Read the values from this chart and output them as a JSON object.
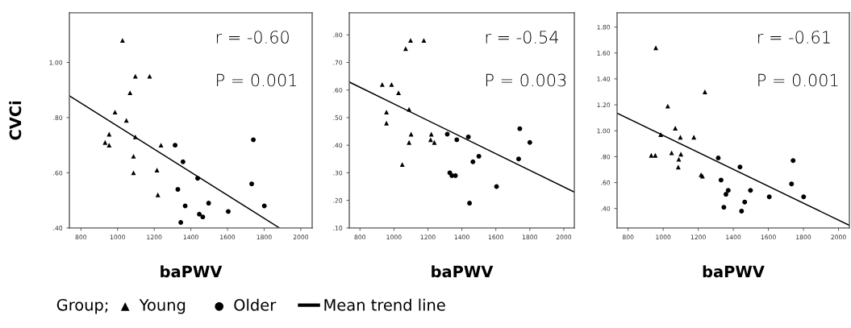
{
  "chart_data": [
    {
      "type": "scatter",
      "ylabel": "CVCi",
      "xlabel": "baPWV",
      "annotations": [
        "r = -0.60",
        "P = 0.001"
      ],
      "legend": "bottom",
      "legend_title": "Group;",
      "grid": false,
      "xlim": [
        737,
        2062
      ],
      "xticks": [
        800,
        1000,
        1200,
        1400,
        1600,
        1800,
        2000
      ],
      "ylim": [
        0.4,
        1.18
      ],
      "yticks": [
        {
          "value": 0.4,
          "label": ".40"
        },
        {
          "value": 0.6,
          "label": ".60"
        },
        {
          "value": 0.8,
          "label": ".80"
        },
        {
          "value": 1.0,
          "label": "1.00"
        }
      ],
      "series": [
        {
          "name": "Young",
          "color": "#000000",
          "marker": "triangle",
          "x": [
            1027,
            1097,
            1175,
            1068,
            986,
            1048,
            954,
            932,
            954,
            1097,
            1087,
            1237,
            1087,
            1215,
            1220
          ],
          "values": [
            1.08,
            0.95,
            0.95,
            0.89,
            0.82,
            0.79,
            0.74,
            0.71,
            0.7,
            0.73,
            0.66,
            0.7,
            0.6,
            0.61,
            0.52
          ]
        },
        {
          "name": "Older",
          "color": "#000000",
          "marker": "circle",
          "x": [
            1314,
            1357,
            1437,
            1329,
            1369,
            1446,
            1465,
            1345,
            1497,
            1604,
            1732,
            1741,
            1801
          ],
          "values": [
            0.7,
            0.64,
            0.58,
            0.54,
            0.48,
            0.45,
            0.44,
            0.42,
            0.49,
            0.46,
            0.56,
            0.72,
            0.48
          ]
        },
        {
          "name": "Mean trend line",
          "type": "line",
          "color": "#000000",
          "marker": "none",
          "x": [
            737,
            1884
          ],
          "values": [
            0.879,
            0.4
          ]
        }
      ]
    },
    {
      "type": "scatter",
      "xlabel": "baPWV",
      "annotations": [
        "r = -0.54",
        "P = 0.003"
      ],
      "grid": false,
      "xlim": [
        737,
        2062
      ],
      "xticks": [
        800,
        1000,
        1200,
        1400,
        1600,
        1800,
        2000
      ],
      "ylim": [
        0.1,
        0.88
      ],
      "yticks": [
        {
          "value": 0.1,
          "label": ".10"
        },
        {
          "value": 0.2,
          "label": ".20"
        },
        {
          "value": 0.3,
          "label": ".30"
        },
        {
          "value": 0.4,
          "label": ".40"
        },
        {
          "value": 0.5,
          "label": ".50"
        },
        {
          "value": 0.6,
          "label": ".60"
        },
        {
          "value": 0.7,
          "label": ".70"
        },
        {
          "value": 0.8,
          "label": ".80"
        }
      ],
      "series": [
        {
          "color": "#000000",
          "marker": "triangle",
          "x": [
            931,
            986,
            1027,
            1069,
            1098,
            1176,
            956,
            956,
            1089,
            1101,
            1089,
            1049,
            1220,
            1216,
            1238
          ],
          "values": [
            0.62,
            0.62,
            0.59,
            0.75,
            0.78,
            0.78,
            0.52,
            0.48,
            0.53,
            0.44,
            0.41,
            0.33,
            0.44,
            0.42,
            0.41
          ]
        },
        {
          "color": "#000000",
          "marker": "circle",
          "x": [
            1314,
            1370,
            1438,
            1329,
            1341,
            1362,
            1465,
            1500,
            1445,
            1604,
            1734,
            1741,
            1800
          ],
          "values": [
            0.44,
            0.42,
            0.43,
            0.3,
            0.29,
            0.29,
            0.34,
            0.36,
            0.19,
            0.25,
            0.35,
            0.46,
            0.41
          ]
        },
        {
          "type": "line",
          "color": "#000000",
          "marker": "none",
          "x": [
            737,
            2062
          ],
          "values": [
            0.629,
            0.23
          ]
        }
      ]
    },
    {
      "type": "scatter",
      "xlabel": "baPWV",
      "annotations": [
        "r = -0.61",
        "P = 0.001"
      ],
      "grid": false,
      "xlim": [
        737,
        2062
      ],
      "xticks": [
        800,
        1000,
        1200,
        1400,
        1600,
        1800,
        2000
      ],
      "ylim": [
        0.25,
        1.91
      ],
      "yticks": [
        {
          "value": 0.4,
          "label": ".40"
        },
        {
          "value": 0.6,
          "label": ".60"
        },
        {
          "value": 0.8,
          "label": ".80"
        },
        {
          "value": 1.0,
          "label": "1.00"
        },
        {
          "value": 1.2,
          "label": "1.20"
        },
        {
          "value": 1.4,
          "label": "1.40"
        },
        {
          "value": 1.6,
          "label": "1.60"
        },
        {
          "value": 1.8,
          "label": "1.80"
        }
      ],
      "series": [
        {
          "color": "#000000",
          "marker": "triangle",
          "x": [
            958,
            1026,
            1238,
            986,
            1069,
            1098,
            1175,
            932,
            955,
            1048,
            1101,
            1089,
            1086,
            1216,
            1224
          ],
          "values": [
            1.64,
            1.19,
            1.3,
            0.97,
            1.02,
            0.95,
            0.95,
            0.81,
            0.81,
            0.83,
            0.82,
            0.78,
            0.72,
            0.66,
            0.65
          ]
        },
        {
          "color": "#000000",
          "marker": "circle",
          "x": [
            1314,
            1330,
            1438,
            1358,
            1371,
            1346,
            1447,
            1465,
            1498,
            1605,
            1732,
            1741,
            1801
          ],
          "values": [
            0.79,
            0.62,
            0.72,
            0.51,
            0.54,
            0.41,
            0.38,
            0.45,
            0.54,
            0.49,
            0.59,
            0.77,
            0.49
          ]
        },
        {
          "type": "line",
          "color": "#000000",
          "marker": "none",
          "x": [
            737,
            2062
          ],
          "values": [
            1.136,
            0.27
          ]
        }
      ]
    }
  ]
}
